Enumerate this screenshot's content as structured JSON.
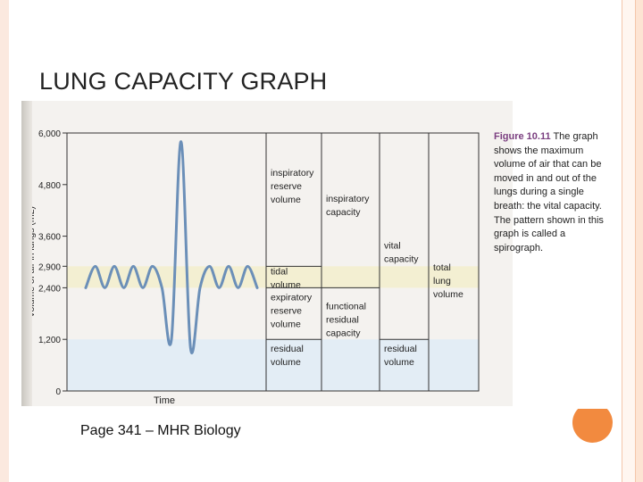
{
  "slide": {
    "title": "LUNG CAPACITY GRAPH",
    "footer": "Page 341 – MHR Biology"
  },
  "caption": {
    "figure_label": "Figure 10.11",
    "text": "The graph shows the maximum volume of air that can be moved in and out of the lungs during a single breath: the vital capacity. The pattern shown in this graph is called a spirograph."
  },
  "chart_data": {
    "type": "line",
    "ylabel": "Volume of air in lungs (mL)",
    "xlabel": "Time",
    "ylim": [
      0,
      6000
    ],
    "yticks": [
      {
        "value": 0,
        "label": "0"
      },
      {
        "value": 1200,
        "label": "1,200"
      },
      {
        "value": 2400,
        "label": "2,400"
      },
      {
        "value": 2900,
        "label": "2,900"
      },
      {
        "value": 3600,
        "label": "3,600"
      },
      {
        "value": 4800,
        "label": "4,800"
      },
      {
        "value": 6000,
        "label": "6,000"
      }
    ],
    "series": [
      {
        "trace": [
          [
            0,
            2400
          ],
          [
            1,
            2900
          ],
          [
            2,
            2400
          ],
          [
            3,
            2900
          ],
          [
            4,
            2400
          ],
          [
            5,
            2900
          ],
          [
            6,
            2400
          ],
          [
            7,
            2900
          ],
          [
            8,
            2400
          ],
          [
            9,
            1200
          ],
          [
            10,
            5800
          ],
          [
            11,
            1000
          ],
          [
            12,
            2400
          ],
          [
            13,
            2900
          ],
          [
            14,
            2400
          ],
          [
            15,
            2900
          ],
          [
            16,
            2400
          ],
          [
            17,
            2900
          ],
          [
            18,
            2400
          ]
        ]
      }
    ],
    "regions": [
      {
        "label": "inspiratory reserve volume",
        "column": 1,
        "from": 2900,
        "to": 6000
      },
      {
        "label": "tidal volume",
        "column": 1,
        "from": 2400,
        "to": 2900
      },
      {
        "label": "expiratory reserve volume",
        "column": 1,
        "from": 1200,
        "to": 2400
      },
      {
        "label": "residual volume",
        "column": 1,
        "from": 0,
        "to": 1200
      },
      {
        "label": "inspiratory capacity",
        "column": 2,
        "from": 2400,
        "to": 6000
      },
      {
        "label": "functional residual capacity",
        "column": 2,
        "from": 0,
        "to": 2400
      },
      {
        "label": "vital capacity",
        "column": 3,
        "from": 1200,
        "to": 6000
      },
      {
        "label": "residual volume",
        "column": 3,
        "from": 0,
        "to": 1200
      },
      {
        "label": "total lung volume",
        "column": 4,
        "from": 0,
        "to": 6000
      }
    ],
    "colors": {
      "trace": "#6b8fb8",
      "band_yellow": "#f3efd2",
      "band_blue": "#e3edf5"
    }
  }
}
